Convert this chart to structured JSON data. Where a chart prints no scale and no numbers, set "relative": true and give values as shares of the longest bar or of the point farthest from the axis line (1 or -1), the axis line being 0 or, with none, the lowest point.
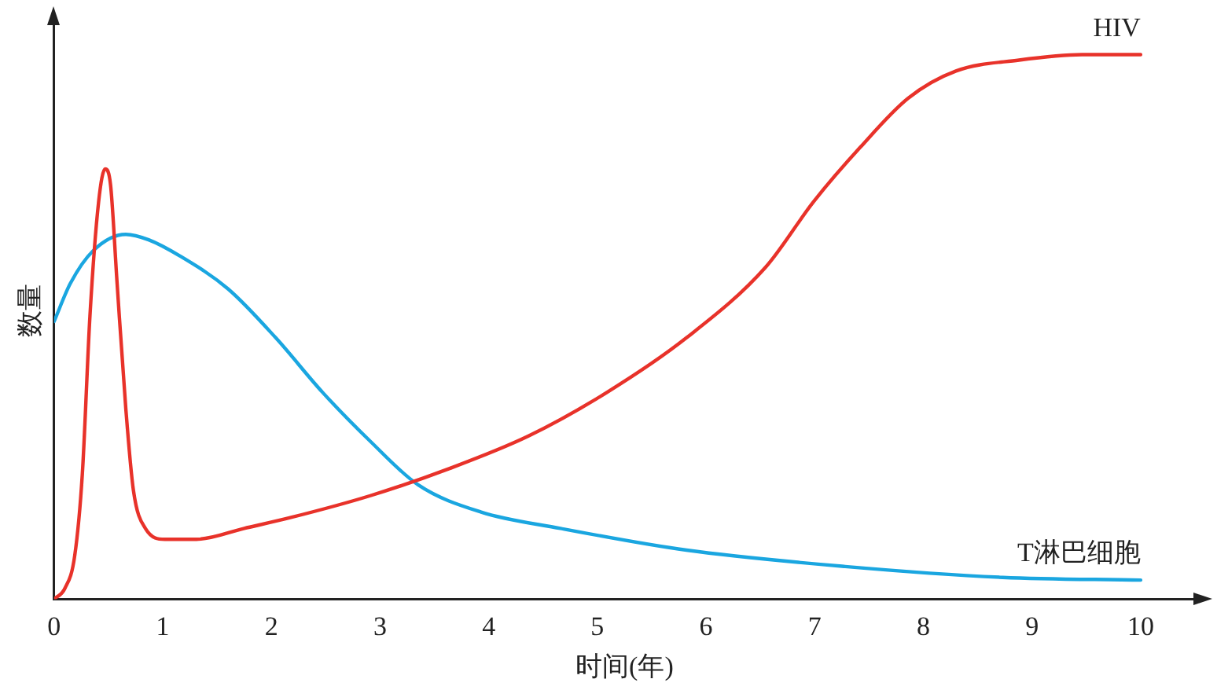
{
  "chart_data": {
    "type": "line",
    "xlabel": "时间(年)",
    "ylabel": "数量",
    "relative": true,
    "xlim": [
      0,
      10.5
    ],
    "xticks": [
      0,
      1,
      2,
      3,
      4,
      5,
      6,
      7,
      8,
      9,
      10
    ],
    "grid": false,
    "legend": false,
    "marker": "none",
    "line_style": "solid",
    "series": [
      {
        "name": "HIV",
        "color": "#e8322a",
        "x": [
          0,
          0.1,
          0.19,
          0.26,
          0.33,
          0.41,
          0.47,
          0.52,
          0.58,
          0.66,
          0.73,
          0.84,
          1.02,
          1.31,
          1.75,
          2.18,
          2.91,
          3.64,
          4.37,
          5.09,
          5.82,
          6.55,
          6.99,
          7.42,
          7.86,
          8.3,
          8.88,
          9.46,
          10
        ],
        "values": [
          0,
          0.02,
          0.08,
          0.23,
          0.52,
          0.73,
          0.79,
          0.76,
          0.58,
          0.35,
          0.2,
          0.13,
          0.11,
          0.11,
          0.13,
          0.15,
          0.19,
          0.24,
          0.3,
          0.38,
          0.48,
          0.61,
          0.73,
          0.83,
          0.92,
          0.97,
          0.99,
          1,
          1
        ]
      },
      {
        "name": "T淋巴细胞",
        "color": "#1aa6e0",
        "x": [
          0,
          0.15,
          0.36,
          0.66,
          0.87,
          1.16,
          1.6,
          2.04,
          2.47,
          2.91,
          3.35,
          3.93,
          4.66,
          5.82,
          7.28,
          8.73,
          10
        ],
        "values": [
          0.51,
          0.58,
          0.64,
          0.67,
          0.66,
          0.63,
          0.57,
          0.48,
          0.38,
          0.29,
          0.21,
          0.16,
          0.13,
          0.09,
          0.06,
          0.04,
          0.035
        ]
      }
    ]
  }
}
